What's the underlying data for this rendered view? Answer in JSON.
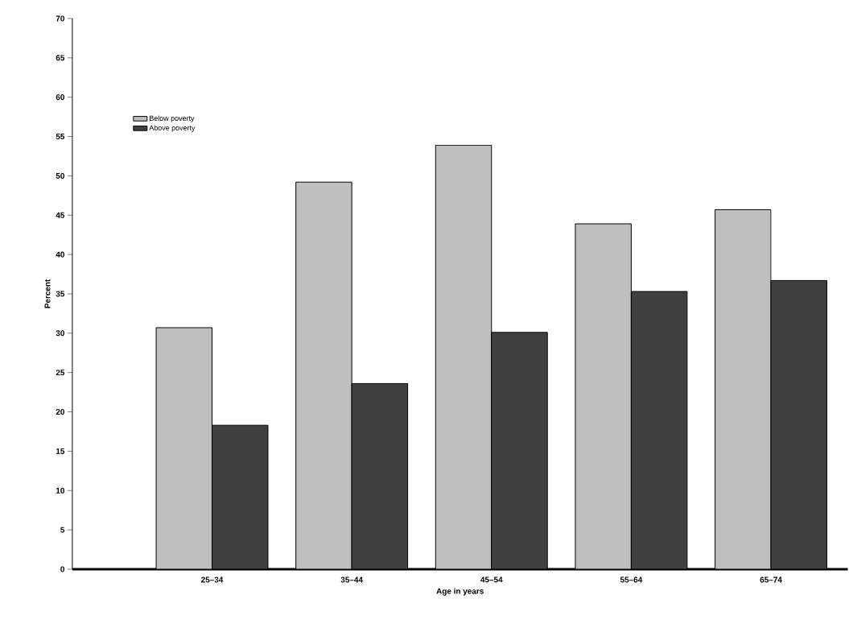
{
  "chart_data": {
    "type": "bar",
    "xlabel": "Age in years",
    "ylabel": "Percent",
    "categories": [
      "25–34",
      "35–44",
      "45–54",
      "55–64",
      "65–74"
    ],
    "series": [
      {
        "name": "Below poverty",
        "color": "#bfbfbf",
        "values": [
          30.7,
          49.2,
          53.9,
          43.9,
          45.7
        ]
      },
      {
        "name": "Above poverty",
        "color": "#404040",
        "values": [
          18.3,
          23.6,
          30.1,
          35.3,
          36.7
        ]
      }
    ],
    "ylim": [
      0,
      70
    ],
    "yticks": [
      0,
      5,
      10,
      15,
      20,
      25,
      30,
      35,
      40,
      45,
      50,
      55,
      60,
      65,
      70
    ],
    "legend": "top left",
    "grid": false
  }
}
